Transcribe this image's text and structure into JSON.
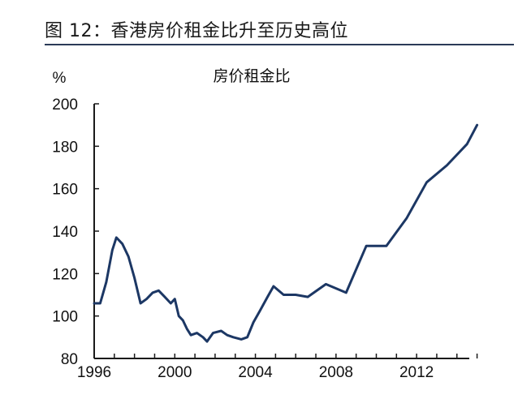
{
  "figure": {
    "title": "图 12：香港房价租金比升至历史高位"
  },
  "chart_data": {
    "type": "line",
    "title": "房价租金比",
    "ylabel": "%",
    "xlabel": "",
    "xlim": [
      1996,
      2015.5
    ],
    "ylim": [
      80,
      200
    ],
    "yticks": [
      80,
      100,
      120,
      140,
      160,
      180,
      200
    ],
    "xticks": [
      1996,
      2000,
      2004,
      2008,
      2012
    ],
    "grid": false,
    "color": "#1c3764",
    "series": [
      {
        "x": [
          1996,
          1996.3,
          1996.6,
          1996.9,
          1997.1,
          1997.4,
          1997.7,
          1998,
          1998.3,
          1998.6,
          1998.9,
          1999.2,
          1999.5,
          1999.8,
          2000.0,
          2000.2,
          2000.4,
          2000.6,
          2000.8,
          2001.1,
          2001.4,
          2001.6,
          2001.9,
          2002.3,
          2002.6,
          2002.9,
          2003.3,
          2003.6,
          2003.9,
          2004.2,
          2004.6,
          2004.9,
          2005.4,
          2006.0,
          2006.6,
          2007.5,
          2008.5,
          2009.5,
          2010.5,
          2011.5,
          2012.5,
          2013.5,
          2014.5,
          2015.0
        ],
        "y": [
          106,
          106,
          116,
          131,
          137,
          134,
          128,
          118,
          106,
          108,
          111,
          112,
          109,
          106,
          108,
          100,
          98,
          94,
          91,
          92,
          90,
          88,
          92,
          93,
          91,
          90,
          89,
          90,
          97,
          102,
          109,
          114,
          110,
          110,
          109,
          115,
          111,
          133,
          133,
          146,
          163,
          171,
          181,
          190
        ]
      }
    ]
  }
}
